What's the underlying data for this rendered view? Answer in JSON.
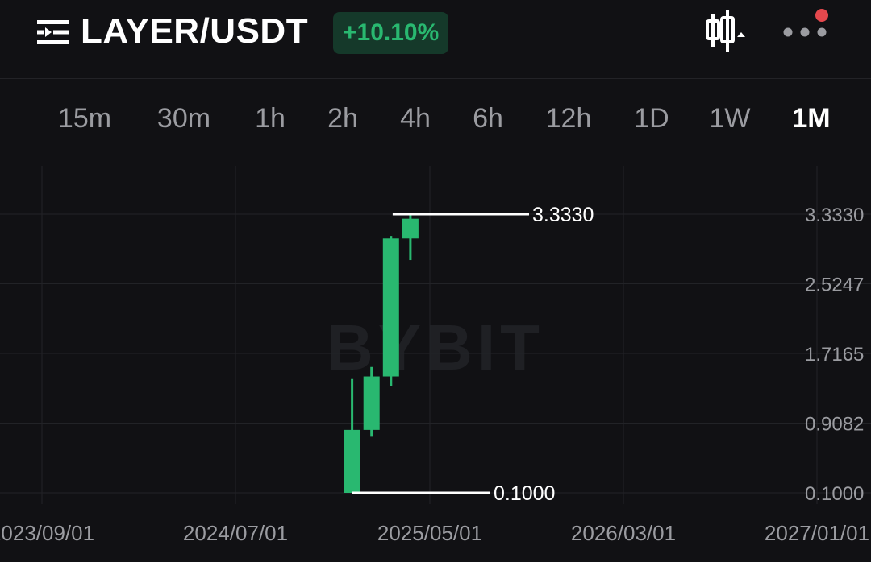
{
  "header": {
    "pair": "LAYER/USDT",
    "change": "+10.10%",
    "accent_green": "#29b870",
    "notification_dot_color": "#e5484d",
    "icons": [
      "menu-icon",
      "candlestick-chart-icon",
      "more-icon"
    ]
  },
  "tabs": [
    {
      "label": "15m",
      "active": false
    },
    {
      "label": "30m",
      "active": false
    },
    {
      "label": "1h",
      "active": false
    },
    {
      "label": "2h",
      "active": false
    },
    {
      "label": "4h",
      "active": false
    },
    {
      "label": "6h",
      "active": false
    },
    {
      "label": "12h",
      "active": false
    },
    {
      "label": "1D",
      "active": false
    },
    {
      "label": "1W",
      "active": false
    },
    {
      "label": "1M",
      "active": true
    }
  ],
  "watermark": "BYBIT",
  "chart_data": {
    "type": "candlestick",
    "x_tick_labels": [
      "2023/09/01",
      "2024/07/01",
      "2025/05/01",
      "2026/03/01",
      "2027/01/01"
    ],
    "y_tick_labels": [
      "3.3330",
      "2.5247",
      "1.7165",
      "0.9082",
      "0.1000"
    ],
    "ylim": [
      0.1,
      3.333
    ],
    "high_marker": "3.3330",
    "low_marker": "0.1000",
    "candle_color": "#29b870",
    "candles": [
      {
        "date": "2025/01",
        "open": 0.1,
        "close": 0.83,
        "high": 1.42,
        "low": 0.1
      },
      {
        "date": "2025/02",
        "open": 0.83,
        "close": 1.45,
        "high": 1.56,
        "low": 0.75
      },
      {
        "date": "2025/03",
        "open": 1.45,
        "close": 3.05,
        "high": 3.08,
        "low": 1.34
      },
      {
        "date": "2025/04",
        "open": 3.05,
        "close": 3.28,
        "high": 3.333,
        "low": 2.8
      }
    ]
  }
}
